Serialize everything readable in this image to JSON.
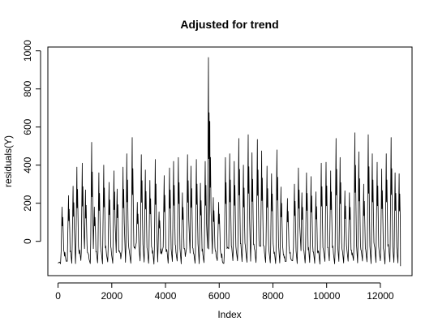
{
  "chart_data": {
    "type": "line",
    "title": "Adjusted for trend",
    "xlabel": "Index",
    "ylabel": "residuals(Y)",
    "xlim": [
      0,
      12800
    ],
    "ylim": [
      -180,
      1020
    ],
    "xticks": [
      0,
      2000,
      4000,
      6000,
      8000,
      10000,
      12000
    ],
    "xtick_labels": [
      "0",
      "2000",
      "4000",
      "6000",
      "8000",
      "10000",
      "12000"
    ],
    "yticks": [
      0,
      200,
      400,
      600,
      800,
      1000
    ],
    "ytick_labels": [
      "0",
      "200",
      "400",
      "600",
      "800",
      "1000"
    ],
    "grid": false,
    "legend": "none",
    "series_color": "#000000",
    "peaks": [
      {
        "x": 150,
        "y": 180
      },
      {
        "x": 390,
        "y": 240
      },
      {
        "x": 560,
        "y": 290
      },
      {
        "x": 700,
        "y": 390
      },
      {
        "x": 900,
        "y": 410
      },
      {
        "x": 1020,
        "y": 270
      },
      {
        "x": 1250,
        "y": 520
      },
      {
        "x": 1350,
        "y": 180
      },
      {
        "x": 1520,
        "y": 360
      },
      {
        "x": 1700,
        "y": 400
      },
      {
        "x": 1900,
        "y": 310
      },
      {
        "x": 2080,
        "y": 370
      },
      {
        "x": 2200,
        "y": 275
      },
      {
        "x": 2420,
        "y": 390
      },
      {
        "x": 2560,
        "y": 460
      },
      {
        "x": 2760,
        "y": 545
      },
      {
        "x": 2950,
        "y": 205
      },
      {
        "x": 3100,
        "y": 455
      },
      {
        "x": 3250,
        "y": 375
      },
      {
        "x": 3420,
        "y": 320
      },
      {
        "x": 3620,
        "y": 430
      },
      {
        "x": 3760,
        "y": 155
      },
      {
        "x": 3950,
        "y": 345
      },
      {
        "x": 4150,
        "y": 385
      },
      {
        "x": 4300,
        "y": 420
      },
      {
        "x": 4480,
        "y": 440
      },
      {
        "x": 4630,
        "y": 255
      },
      {
        "x": 4820,
        "y": 455
      },
      {
        "x": 4950,
        "y": 395
      },
      {
        "x": 5150,
        "y": 430
      },
      {
        "x": 5300,
        "y": 305
      },
      {
        "x": 5480,
        "y": 420
      },
      {
        "x": 5600,
        "y": 965
      },
      {
        "x": 5650,
        "y": 630
      },
      {
        "x": 5780,
        "y": 230
      },
      {
        "x": 5980,
        "y": 205
      },
      {
        "x": 6230,
        "y": 440
      },
      {
        "x": 6390,
        "y": 460
      },
      {
        "x": 6560,
        "y": 420
      },
      {
        "x": 6730,
        "y": 540
      },
      {
        "x": 6900,
        "y": 400
      },
      {
        "x": 7080,
        "y": 560
      },
      {
        "x": 7220,
        "y": 465
      },
      {
        "x": 7420,
        "y": 535
      },
      {
        "x": 7580,
        "y": 475
      },
      {
        "x": 7780,
        "y": 395
      },
      {
        "x": 7950,
        "y": 355
      },
      {
        "x": 8150,
        "y": 480
      },
      {
        "x": 8300,
        "y": 285
      },
      {
        "x": 8540,
        "y": 225
      },
      {
        "x": 8800,
        "y": 300
      },
      {
        "x": 8950,
        "y": 385
      },
      {
        "x": 9080,
        "y": 255
      },
      {
        "x": 9250,
        "y": 360
      },
      {
        "x": 9420,
        "y": 340
      },
      {
        "x": 9600,
        "y": 260
      },
      {
        "x": 9800,
        "y": 410
      },
      {
        "x": 9980,
        "y": 415
      },
      {
        "x": 10150,
        "y": 370
      },
      {
        "x": 10350,
        "y": 540
      },
      {
        "x": 10500,
        "y": 440
      },
      {
        "x": 10680,
        "y": 265
      },
      {
        "x": 10850,
        "y": 255
      },
      {
        "x": 11050,
        "y": 570
      },
      {
        "x": 11200,
        "y": 470
      },
      {
        "x": 11380,
        "y": 300
      },
      {
        "x": 11550,
        "y": 560
      },
      {
        "x": 11700,
        "y": 460
      },
      {
        "x": 11880,
        "y": 415
      },
      {
        "x": 12050,
        "y": 380
      },
      {
        "x": 12220,
        "y": 460
      },
      {
        "x": 12400,
        "y": 545
      },
      {
        "x": 12550,
        "y": 360
      },
      {
        "x": 12700,
        "y": 355
      }
    ],
    "baseline": -105,
    "n_points": 12800
  }
}
